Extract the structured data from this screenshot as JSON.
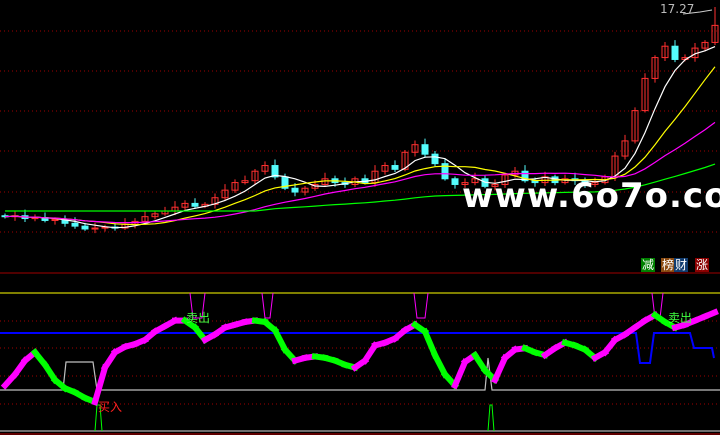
{
  "price_panel": {
    "high_label": "17.27",
    "watermark": "www.6o7o.com",
    "colors": {
      "up": "#ff3030",
      "down": "#54fcfc",
      "ma_fast": "#ffffff",
      "ma_mid": "#ffff00",
      "ma_slow": "#ff00ff",
      "ma_long": "#00ff00",
      "grid": "#a00000"
    }
  },
  "legend_tags": [
    {
      "label": "减",
      "bg": "#008000"
    },
    {
      "label": "榜",
      "bg": "#8b4a10"
    },
    {
      "label": "财",
      "bg": "#103c70"
    },
    {
      "label": "涨",
      "bg": "#8b0000"
    }
  ],
  "indicator_panel": {
    "sell_label": "卖出",
    "buy_label": "买入",
    "colors": {
      "rising": "#ff00ff",
      "falling": "#00ff00",
      "upper": "#ffff00",
      "mid": "#0000ff",
      "lower": "#c0c0c0"
    }
  },
  "chart_data": [
    {
      "type": "candlestick",
      "title": "",
      "max_price_label": 17.27,
      "close": [
        6.2,
        6.25,
        6.1,
        6.15,
        6.0,
        6.05,
        5.85,
        5.7,
        5.55,
        5.6,
        5.65,
        5.6,
        5.8,
        5.95,
        6.2,
        6.35,
        6.5,
        6.7,
        6.9,
        6.75,
        6.85,
        7.2,
        7.6,
        8.0,
        8.1,
        8.6,
        8.9,
        8.3,
        7.7,
        7.5,
        7.7,
        7.9,
        8.2,
        8.0,
        7.9,
        8.2,
        8.0,
        8.6,
        8.9,
        8.7,
        9.6,
        10.0,
        9.5,
        9.0,
        8.2,
        7.9,
        8.0,
        8.2,
        7.8,
        7.9,
        8.4,
        8.6,
        8.1,
        8.0,
        8.3,
        8.0,
        8.2,
        8.1,
        7.9,
        8.0,
        8.3,
        9.4,
        10.2,
        11.8,
        13.5,
        14.6,
        15.2,
        14.5,
        14.6,
        15.1,
        15.4,
        16.3
      ],
      "moving_averages": [
        5,
        10,
        20,
        60
      ]
    },
    {
      "type": "line",
      "title": "",
      "ylim": [
        0,
        100
      ],
      "reference_levels": [
        100,
        71,
        30,
        0
      ],
      "values": [
        33,
        41,
        51,
        57,
        48,
        37,
        31,
        28,
        24,
        21,
        46,
        57,
        61,
        63,
        66,
        72,
        76,
        80,
        80,
        75,
        66,
        70,
        75,
        77,
        79,
        80,
        79,
        73,
        59,
        51,
        53,
        54,
        53,
        51,
        48,
        46,
        51,
        62,
        64,
        67,
        73,
        77,
        72,
        55,
        41,
        33,
        50,
        55,
        44,
        37,
        53,
        59,
        60,
        57,
        55,
        60,
        64,
        62,
        59,
        53,
        57,
        66,
        70,
        75,
        80,
        84,
        79,
        75,
        77,
        80,
        83,
        86
      ]
    }
  ]
}
